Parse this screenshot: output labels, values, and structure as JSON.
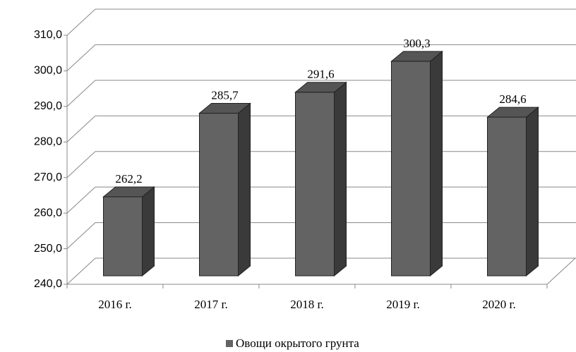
{
  "chart_data": {
    "type": "bar3d",
    "categories": [
      "2016 г.",
      "2017 г.",
      "2018 г.",
      "2019 г.",
      "2020 г."
    ],
    "series": [
      {
        "name": "Овощи окрытого грунта",
        "color": "#636363",
        "values": [
          262.2,
          285.7,
          291.6,
          300.3,
          284.6
        ],
        "value_labels": [
          "262,2",
          "285,7",
          "291,6",
          "300,3",
          "284,6"
        ]
      }
    ],
    "ylim": [
      240,
      310
    ],
    "yticks": [
      {
        "value": 240,
        "label": "240,0"
      },
      {
        "value": 250,
        "label": "250,0"
      },
      {
        "value": 260,
        "label": "260,0"
      },
      {
        "value": 270,
        "label": "270,0"
      },
      {
        "value": 280,
        "label": "280,0"
      },
      {
        "value": 290,
        "label": "290,0"
      },
      {
        "value": 300,
        "label": "300,0"
      },
      {
        "value": 310,
        "label": "310,0"
      }
    ],
    "grid": true,
    "legend": "bottom"
  }
}
